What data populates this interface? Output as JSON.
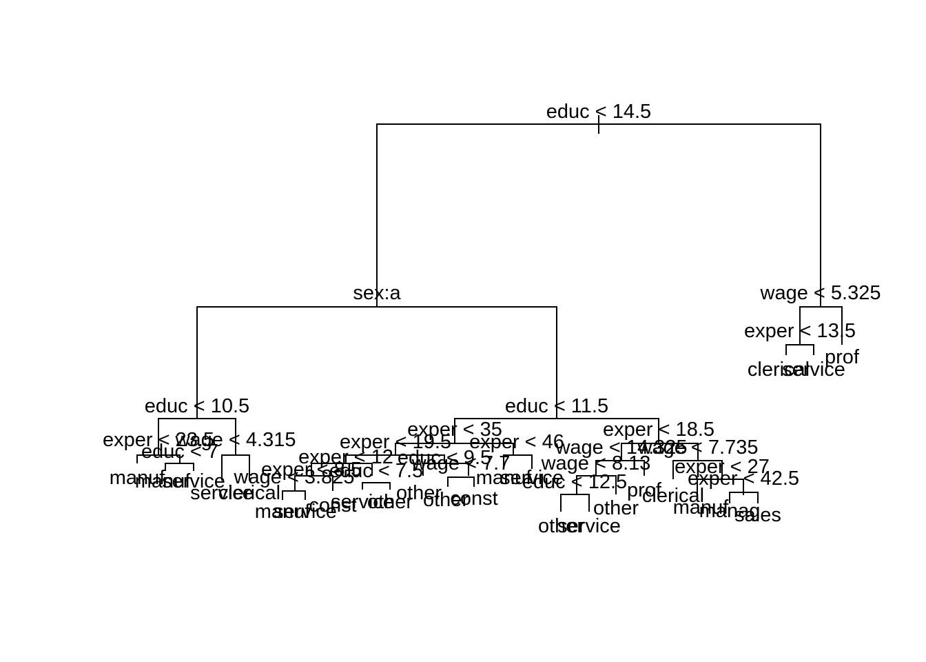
{
  "tree": {
    "type": "decision-tree",
    "nodes": {
      "n0": {
        "label": "educ < 14.5"
      },
      "n1": {
        "label": "sex:a"
      },
      "n2": {
        "label": "wage < 5.325"
      },
      "n3": {
        "label": "exper < 13.5"
      },
      "n4": {
        "label": "educ < 10.5"
      },
      "n5": {
        "label": "educ < 11.5"
      },
      "n6": {
        "label": "exper < 23.5"
      },
      "n7": {
        "label": "wage < 4.315"
      },
      "n8": {
        "label": "educ < 7"
      },
      "n9": {
        "label": "wage < 3.825"
      },
      "n10": {
        "label": "exper < 35"
      },
      "n11": {
        "label": "exper < 18.5"
      },
      "n12": {
        "label": "exper < 19.5"
      },
      "n13": {
        "label": "exper < 46"
      },
      "n14": {
        "label": "exper < 12"
      },
      "n15": {
        "label": "educ < 9.5"
      },
      "n16": {
        "label": "exper < 8.5"
      },
      "n17": {
        "label": "wage < 7.7"
      },
      "n18": {
        "label": "educ < 7.5"
      },
      "n19": {
        "label": "wage < 14.325"
      },
      "n20": {
        "label": "wage < 7.735"
      },
      "n21": {
        "label": "wage < 8.13"
      },
      "n22": {
        "label": "educ < 12.5"
      },
      "n23": {
        "label": "exper < 27"
      },
      "n24": {
        "label": "exper < 42.5"
      }
    },
    "leaves": {
      "l1": "clerical",
      "l2": "service",
      "l3": "prof",
      "l4": "manuf",
      "l5": "manuf",
      "l6": "service",
      "l7": "service",
      "l8": "clerical",
      "l9": "manuf",
      "l10": "service",
      "l11": "const",
      "l12": "service",
      "l13": "other",
      "l14": "other",
      "l15": "other",
      "l16": "const",
      "l17": "manuf",
      "l18": "service",
      "l19": "other",
      "l20": "service",
      "l21": "other",
      "l22": "prof",
      "l23": "clerical",
      "l24": "manuf",
      "l25": "manag",
      "l26": "sales"
    }
  }
}
